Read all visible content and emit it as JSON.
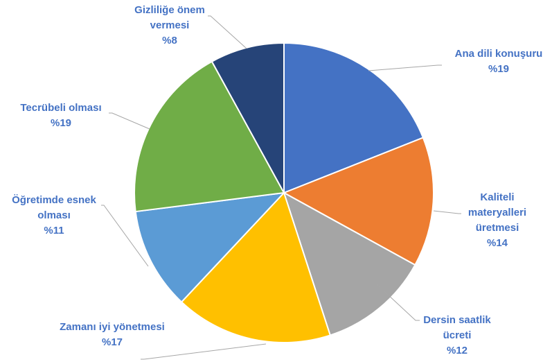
{
  "chart_data": {
    "type": "pie",
    "title": "",
    "slices": [
      {
        "name": "Ana dili konuşuru",
        "value": 19,
        "pct_label": "%19",
        "color": "#4472C4"
      },
      {
        "name": "Kaliteli materyalleri üretmesi",
        "value": 14,
        "pct_label": "%14",
        "color": "#ED7D31"
      },
      {
        "name": "Dersin saatlik ücreti",
        "value": 12,
        "pct_label": "%12",
        "color": "#A5A5A5"
      },
      {
        "name": "Zamanı iyi yönetmesi",
        "value": 17,
        "pct_label": "%17",
        "color": "#FFC000"
      },
      {
        "name": "Öğretimde esnek olması",
        "value": 11,
        "pct_label": "%11",
        "color": "#5B9BD5"
      },
      {
        "name": "Tecrübeli olması",
        "value": 19,
        "pct_label": "%19",
        "color": "#70AD47"
      },
      {
        "name": "Gizliliğe önem vermesi",
        "value": 8,
        "pct_label": "%8",
        "color": "#264478"
      }
    ],
    "start": "12 o'clock",
    "direction": "clockwise",
    "legend": "none",
    "data_labels": "outside with leader lines",
    "label_color": "#4472C4",
    "leader_line_color": "#A6A6A6"
  }
}
